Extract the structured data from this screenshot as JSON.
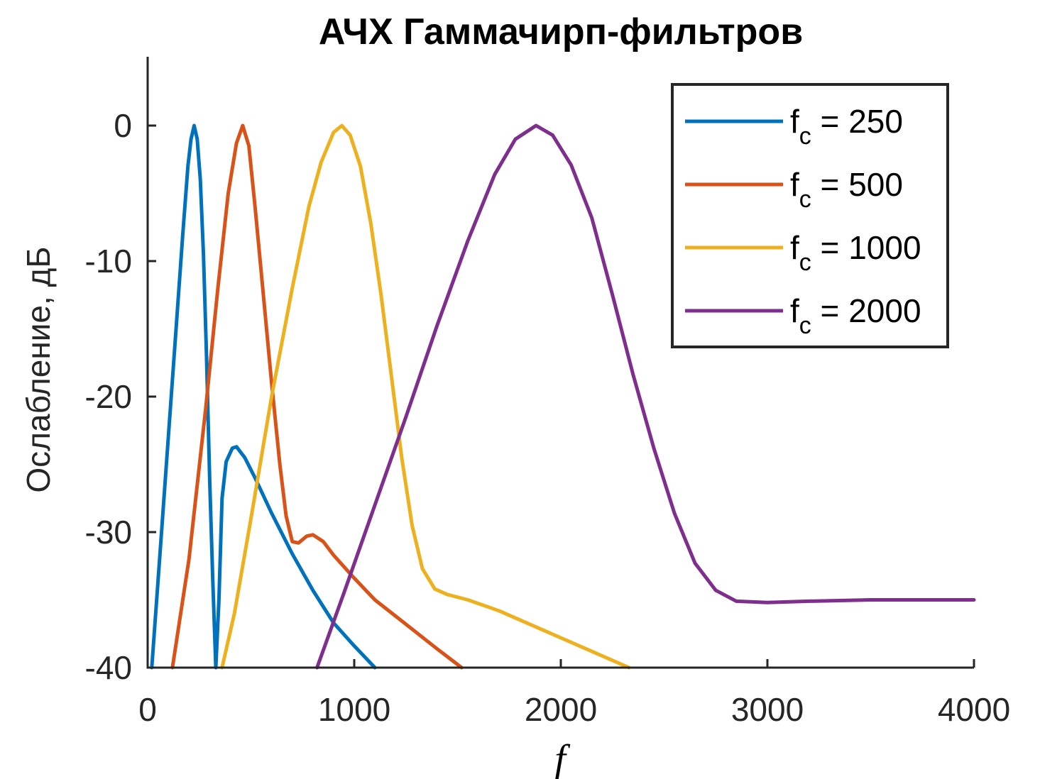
{
  "chart_data": {
    "type": "line",
    "title": "АЧХ Гаммачирп-фильтров",
    "xlabel": "f",
    "ylabel": "Ослабление, дБ",
    "xlim": [
      0,
      4000
    ],
    "ylim": [
      -40,
      5
    ],
    "xticks": [
      0,
      1000,
      2000,
      3000,
      4000
    ],
    "yticks": [
      0,
      -10,
      -20,
      -30,
      -40
    ],
    "xtick_labels": [
      "0",
      "1000",
      "2000",
      "3000",
      "4000"
    ],
    "ytick_labels": [
      "0",
      "-10",
      "-20",
      "-30",
      "-40"
    ],
    "grid": false,
    "legend_position": "top-right",
    "series": [
      {
        "legend_prefix": "f",
        "legend_sub": "c",
        "legend_suffix": " = 250",
        "color": "#0072BD",
        "points": [
          [
            20,
            -40
          ],
          [
            60,
            -31.5
          ],
          [
            100,
            -23
          ],
          [
            140,
            -14.5
          ],
          [
            170,
            -8
          ],
          [
            195,
            -3
          ],
          [
            210,
            -1
          ],
          [
            225,
            0
          ],
          [
            240,
            -1
          ],
          [
            255,
            -4
          ],
          [
            270,
            -9.5
          ],
          [
            285,
            -17
          ],
          [
            300,
            -26
          ],
          [
            315,
            -33.5
          ],
          [
            330,
            -40
          ],
          [
            345,
            -35
          ],
          [
            360,
            -27.5
          ],
          [
            380,
            -24.8
          ],
          [
            410,
            -23.8
          ],
          [
            430,
            -23.7
          ],
          [
            470,
            -24.5
          ],
          [
            520,
            -26
          ],
          [
            600,
            -28.6
          ],
          [
            700,
            -31.6
          ],
          [
            800,
            -34.3
          ],
          [
            900,
            -36.7
          ],
          [
            1000,
            -38.4
          ],
          [
            1100,
            -40
          ]
        ]
      },
      {
        "legend_prefix": "f",
        "legend_sub": "c",
        "legend_suffix": " = 500",
        "color": "#D95319",
        "points": [
          [
            120,
            -40
          ],
          [
            200,
            -32
          ],
          [
            280,
            -21
          ],
          [
            340,
            -12
          ],
          [
            390,
            -5
          ],
          [
            430,
            -1.3
          ],
          [
            460,
            0
          ],
          [
            490,
            -1.5
          ],
          [
            520,
            -6
          ],
          [
            560,
            -12.5
          ],
          [
            600,
            -19
          ],
          [
            640,
            -25
          ],
          [
            670,
            -28.8
          ],
          [
            700,
            -30.7
          ],
          [
            730,
            -30.8
          ],
          [
            770,
            -30.3
          ],
          [
            800,
            -30.2
          ],
          [
            850,
            -30.7
          ],
          [
            900,
            -31.7
          ],
          [
            1000,
            -33.4
          ],
          [
            1100,
            -35
          ],
          [
            1200,
            -36.2
          ],
          [
            1300,
            -37.4
          ],
          [
            1400,
            -38.6
          ],
          [
            1520,
            -40
          ]
        ]
      },
      {
        "legend_prefix": "f",
        "legend_sub": "c",
        "legend_suffix": " = 1000",
        "color": "#EDB120",
        "points": [
          [
            360,
            -40
          ],
          [
            420,
            -36
          ],
          [
            500,
            -29
          ],
          [
            600,
            -20
          ],
          [
            700,
            -12
          ],
          [
            780,
            -6
          ],
          [
            840,
            -2.7
          ],
          [
            900,
            -0.5
          ],
          [
            940,
            0
          ],
          [
            980,
            -0.7
          ],
          [
            1030,
            -3
          ],
          [
            1080,
            -7.2
          ],
          [
            1130,
            -12.5
          ],
          [
            1180,
            -18.5
          ],
          [
            1230,
            -24.5
          ],
          [
            1280,
            -29.5
          ],
          [
            1330,
            -32.7
          ],
          [
            1390,
            -34.2
          ],
          [
            1450,
            -34.6
          ],
          [
            1550,
            -35
          ],
          [
            1700,
            -35.8
          ],
          [
            1850,
            -36.8
          ],
          [
            2000,
            -37.8
          ],
          [
            2150,
            -38.8
          ],
          [
            2330,
            -40
          ]
        ]
      },
      {
        "legend_prefix": "f",
        "legend_sub": "c",
        "legend_suffix": " = 2000",
        "color": "#7E2F8E",
        "points": [
          [
            820,
            -40
          ],
          [
            950,
            -34.5
          ],
          [
            1100,
            -28
          ],
          [
            1250,
            -21.5
          ],
          [
            1400,
            -14.8
          ],
          [
            1550,
            -8.5
          ],
          [
            1680,
            -3.6
          ],
          [
            1780,
            -1
          ],
          [
            1880,
            0
          ],
          [
            1960,
            -0.7
          ],
          [
            2050,
            -2.9
          ],
          [
            2150,
            -6.8
          ],
          [
            2250,
            -12.5
          ],
          [
            2350,
            -18.4
          ],
          [
            2450,
            -23.8
          ],
          [
            2550,
            -28.6
          ],
          [
            2650,
            -32.3
          ],
          [
            2750,
            -34.3
          ],
          [
            2850,
            -35.1
          ],
          [
            3000,
            -35.2
          ],
          [
            3200,
            -35.1
          ],
          [
            3500,
            -35
          ],
          [
            3800,
            -35
          ],
          [
            4000,
            -35
          ]
        ]
      }
    ]
  }
}
